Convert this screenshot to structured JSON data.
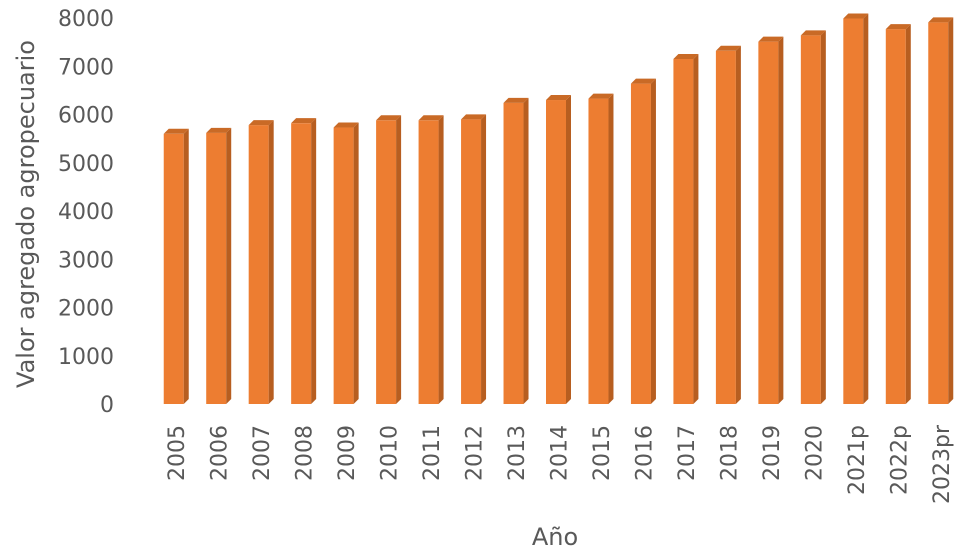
{
  "chart_data": {
    "type": "bar",
    "style": "3d-column",
    "title": "",
    "xlabel": "Año",
    "ylabel": "Valor agregado agropecuario",
    "ylim": [
      0,
      8000
    ],
    "yticks": [
      "0",
      "1000",
      "2000",
      "3000",
      "4000",
      "5000",
      "6000",
      "7000",
      "8000"
    ],
    "grid": false,
    "legend": "none",
    "categories": [
      "2005",
      "2006",
      "2007",
      "2008",
      "2009",
      "2010",
      "2011",
      "2012",
      "2013",
      "2014",
      "2015",
      "2016",
      "2017",
      "2018",
      "2019",
      "2020",
      "2021p",
      "2022p",
      "2023pr"
    ],
    "values": [
      5600,
      5620,
      5780,
      5820,
      5730,
      5880,
      5880,
      5900,
      6240,
      6300,
      6330,
      6640,
      7150,
      7320,
      7510,
      7640,
      7990,
      7770,
      7910
    ],
    "colors": {
      "bar_front": "#ED7D31",
      "bar_side": "#B75E20",
      "bar_top": "#C96A26",
      "text": "#595959"
    }
  }
}
